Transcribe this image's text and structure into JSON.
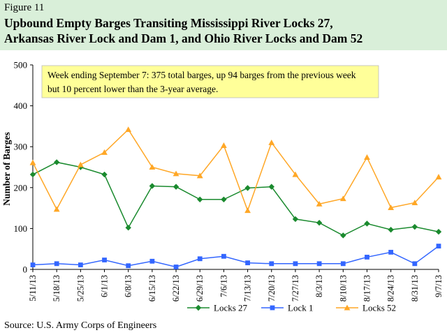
{
  "figure": {
    "label": "Figure 11",
    "title_line1": "Upbound Empty Barges Transiting Mississippi River Locks 27,",
    "title_line2": "Arkansas River Lock and Dam 1, and Ohio River Locks and Dam 52"
  },
  "source": "Source:  U.S. Army Corps of Engineers",
  "chart_data": {
    "type": "line",
    "ylabel": "Number  of Barges",
    "xlabel": "",
    "ylim": [
      0,
      500
    ],
    "yticks": [
      0,
      100,
      200,
      300,
      400,
      500
    ],
    "grid": false,
    "legend_position": "bottom",
    "annotation_line1": "Week ending September 7:  375 total barges, up 94 barges from the previous week",
    "annotation_line2": "but 10 percent lower than the 3-year average.",
    "categories": [
      "5/11/13",
      "5/18/13",
      "5/25/13",
      "6/1/13",
      "6/8/13",
      "6/15/13",
      "6/22/13",
      "6/29/13",
      "7/6/13",
      "7/13/13",
      "7/20/13",
      "7/27/13",
      "8/3/13",
      "8/10/13",
      "8/17/13",
      "8/24/13",
      "8/31/13",
      "9/7/13"
    ],
    "series": [
      {
        "name": "Locks 27",
        "color": "#1a8a2e",
        "marker": "diamond",
        "values": [
          232,
          262,
          250,
          232,
          102,
          204,
          202,
          171,
          171,
          199,
          202,
          123,
          114,
          83,
          112,
          97,
          104,
          92
        ]
      },
      {
        "name": "Lock 1",
        "color": "#3366ff",
        "marker": "square",
        "values": [
          11,
          14,
          11,
          23,
          9,
          20,
          6,
          26,
          32,
          16,
          14,
          14,
          14,
          14,
          30,
          42,
          14,
          57
        ]
      },
      {
        "name": "Locks 52",
        "color": "#ffa726",
        "marker": "triangle",
        "values": [
          261,
          147,
          256,
          286,
          342,
          250,
          234,
          229,
          303,
          144,
          310,
          232,
          160,
          173,
          274,
          151,
          163,
          226
        ]
      }
    ]
  }
}
